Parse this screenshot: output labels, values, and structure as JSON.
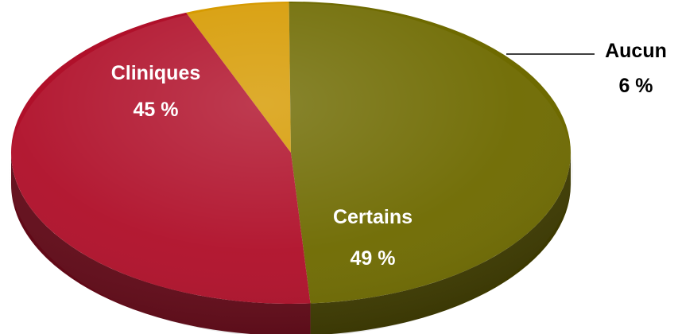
{
  "chart_data": {
    "type": "pie",
    "style": "3d",
    "categories": [
      "Cliniques",
      "Certains",
      "Aucun"
    ],
    "values": [
      45,
      49,
      6
    ],
    "value_labels": [
      "45 %",
      "49 %",
      "6 %"
    ],
    "colors": [
      "#B0102A",
      "#6E6A00",
      "#D69A00"
    ],
    "label_colors": [
      "#ffffff",
      "#ffffff",
      "#000000"
    ],
    "title": "",
    "legend": "none"
  }
}
